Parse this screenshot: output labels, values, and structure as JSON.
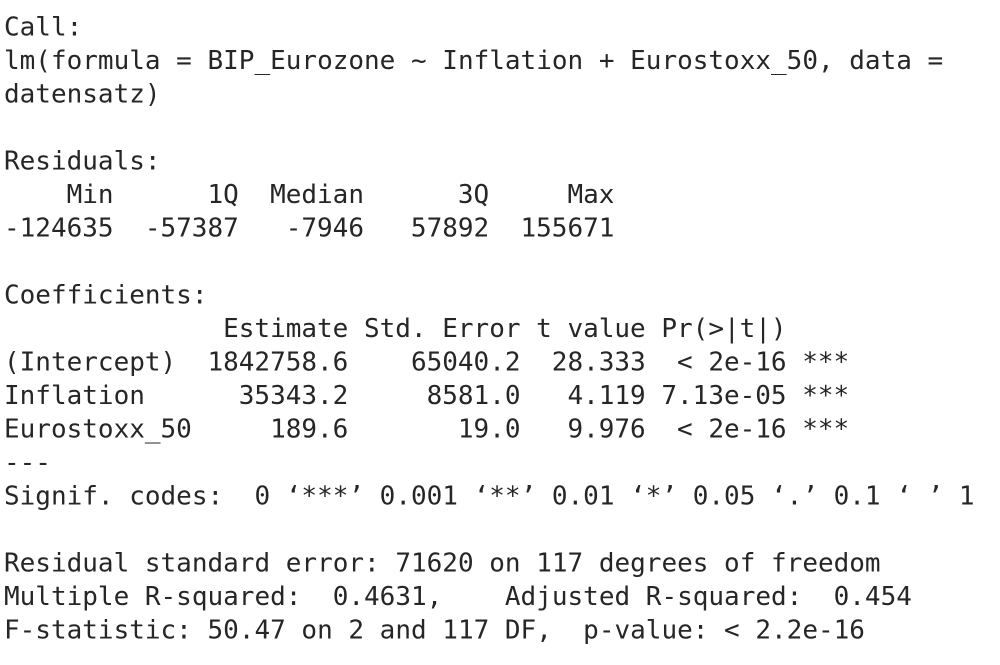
{
  "call": {
    "label": "Call:",
    "lines": [
      "lm(formula = BIP_Eurozone ~ Inflation + Eurostoxx_50, data =",
      "datensatz)"
    ]
  },
  "residuals": {
    "label": "Residuals:",
    "header": [
      "Min",
      "1Q",
      "Median",
      "3Q",
      "Max"
    ],
    "values": [
      "-124635",
      "-57387",
      "-7946",
      "57892",
      "155671"
    ]
  },
  "coefficients": {
    "label": "Coefficients:",
    "columns": [
      "Estimate",
      "Std. Error",
      "t value",
      "Pr(>|t|)"
    ],
    "rows": [
      {
        "name": "(Intercept)",
        "cells": [
          "1842758.6",
          "65040.2",
          "28.333",
          "< 2e-16"
        ],
        "signif": "***"
      },
      {
        "name": "Inflation",
        "cells": [
          "35343.2",
          "8581.0",
          "4.119",
          "7.13e-05"
        ],
        "signif": "***"
      },
      {
        "name": "Eurostoxx_50",
        "cells": [
          "189.6",
          "19.0",
          "9.976",
          "< 2e-16"
        ],
        "signif": "***"
      }
    ],
    "separator": "---",
    "signif_codes": "Signif. codes:  0 ‘***’ 0.001 ‘**’ 0.01 ‘*’ 0.05 ‘.’ 0.1 ‘ ’ 1"
  },
  "summary": [
    "Residual standard error: 71620 on 117 degrees of freedom",
    "Multiple R-squared:  0.4631,    Adjusted R-squared:  0.454",
    "F-statistic: 50.47 on 2 and 117 DF,  p-value: < 2.2e-16"
  ]
}
